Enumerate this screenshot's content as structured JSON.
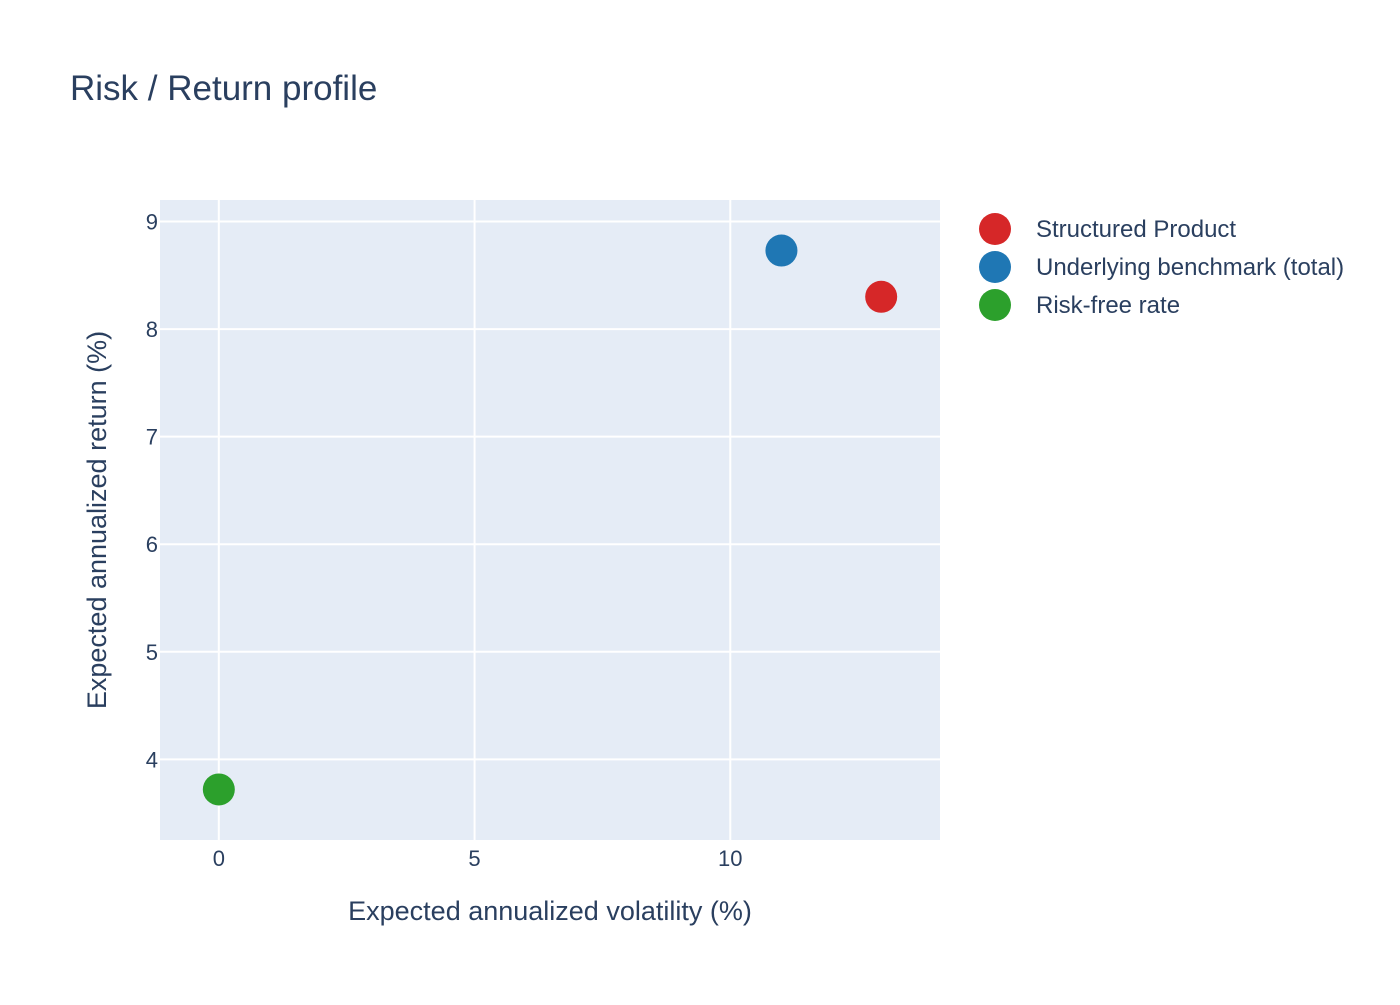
{
  "colors": {
    "plot_bg": "#e5ecf6",
    "grid": "#ffffff",
    "text": "#2a3f5f",
    "page_bg": "#ffffff"
  },
  "chart_data": {
    "type": "scatter",
    "title": "Risk / Return profile",
    "xlabel": "Expected annualized volatility (%)",
    "ylabel": "Expected annualized return (%)",
    "xlim": [
      -1.15,
      14.1
    ],
    "ylim": [
      3.25,
      9.2
    ],
    "x_ticks": [
      0,
      5,
      10
    ],
    "y_ticks": [
      4,
      5,
      6,
      7,
      8,
      9
    ],
    "grid": true,
    "legend_position": "top-right, outside plot",
    "series": [
      {
        "name": "Structured Product",
        "color": "#d62728",
        "points": [
          {
            "x": 12.95,
            "y": 8.3
          }
        ]
      },
      {
        "name": "Underlying benchmark (total)",
        "color": "#1f77b4",
        "points": [
          {
            "x": 11.0,
            "y": 8.73
          }
        ]
      },
      {
        "name": "Risk-free rate",
        "color": "#2ca02c",
        "points": [
          {
            "x": 0.0,
            "y": 3.72
          }
        ]
      }
    ]
  }
}
